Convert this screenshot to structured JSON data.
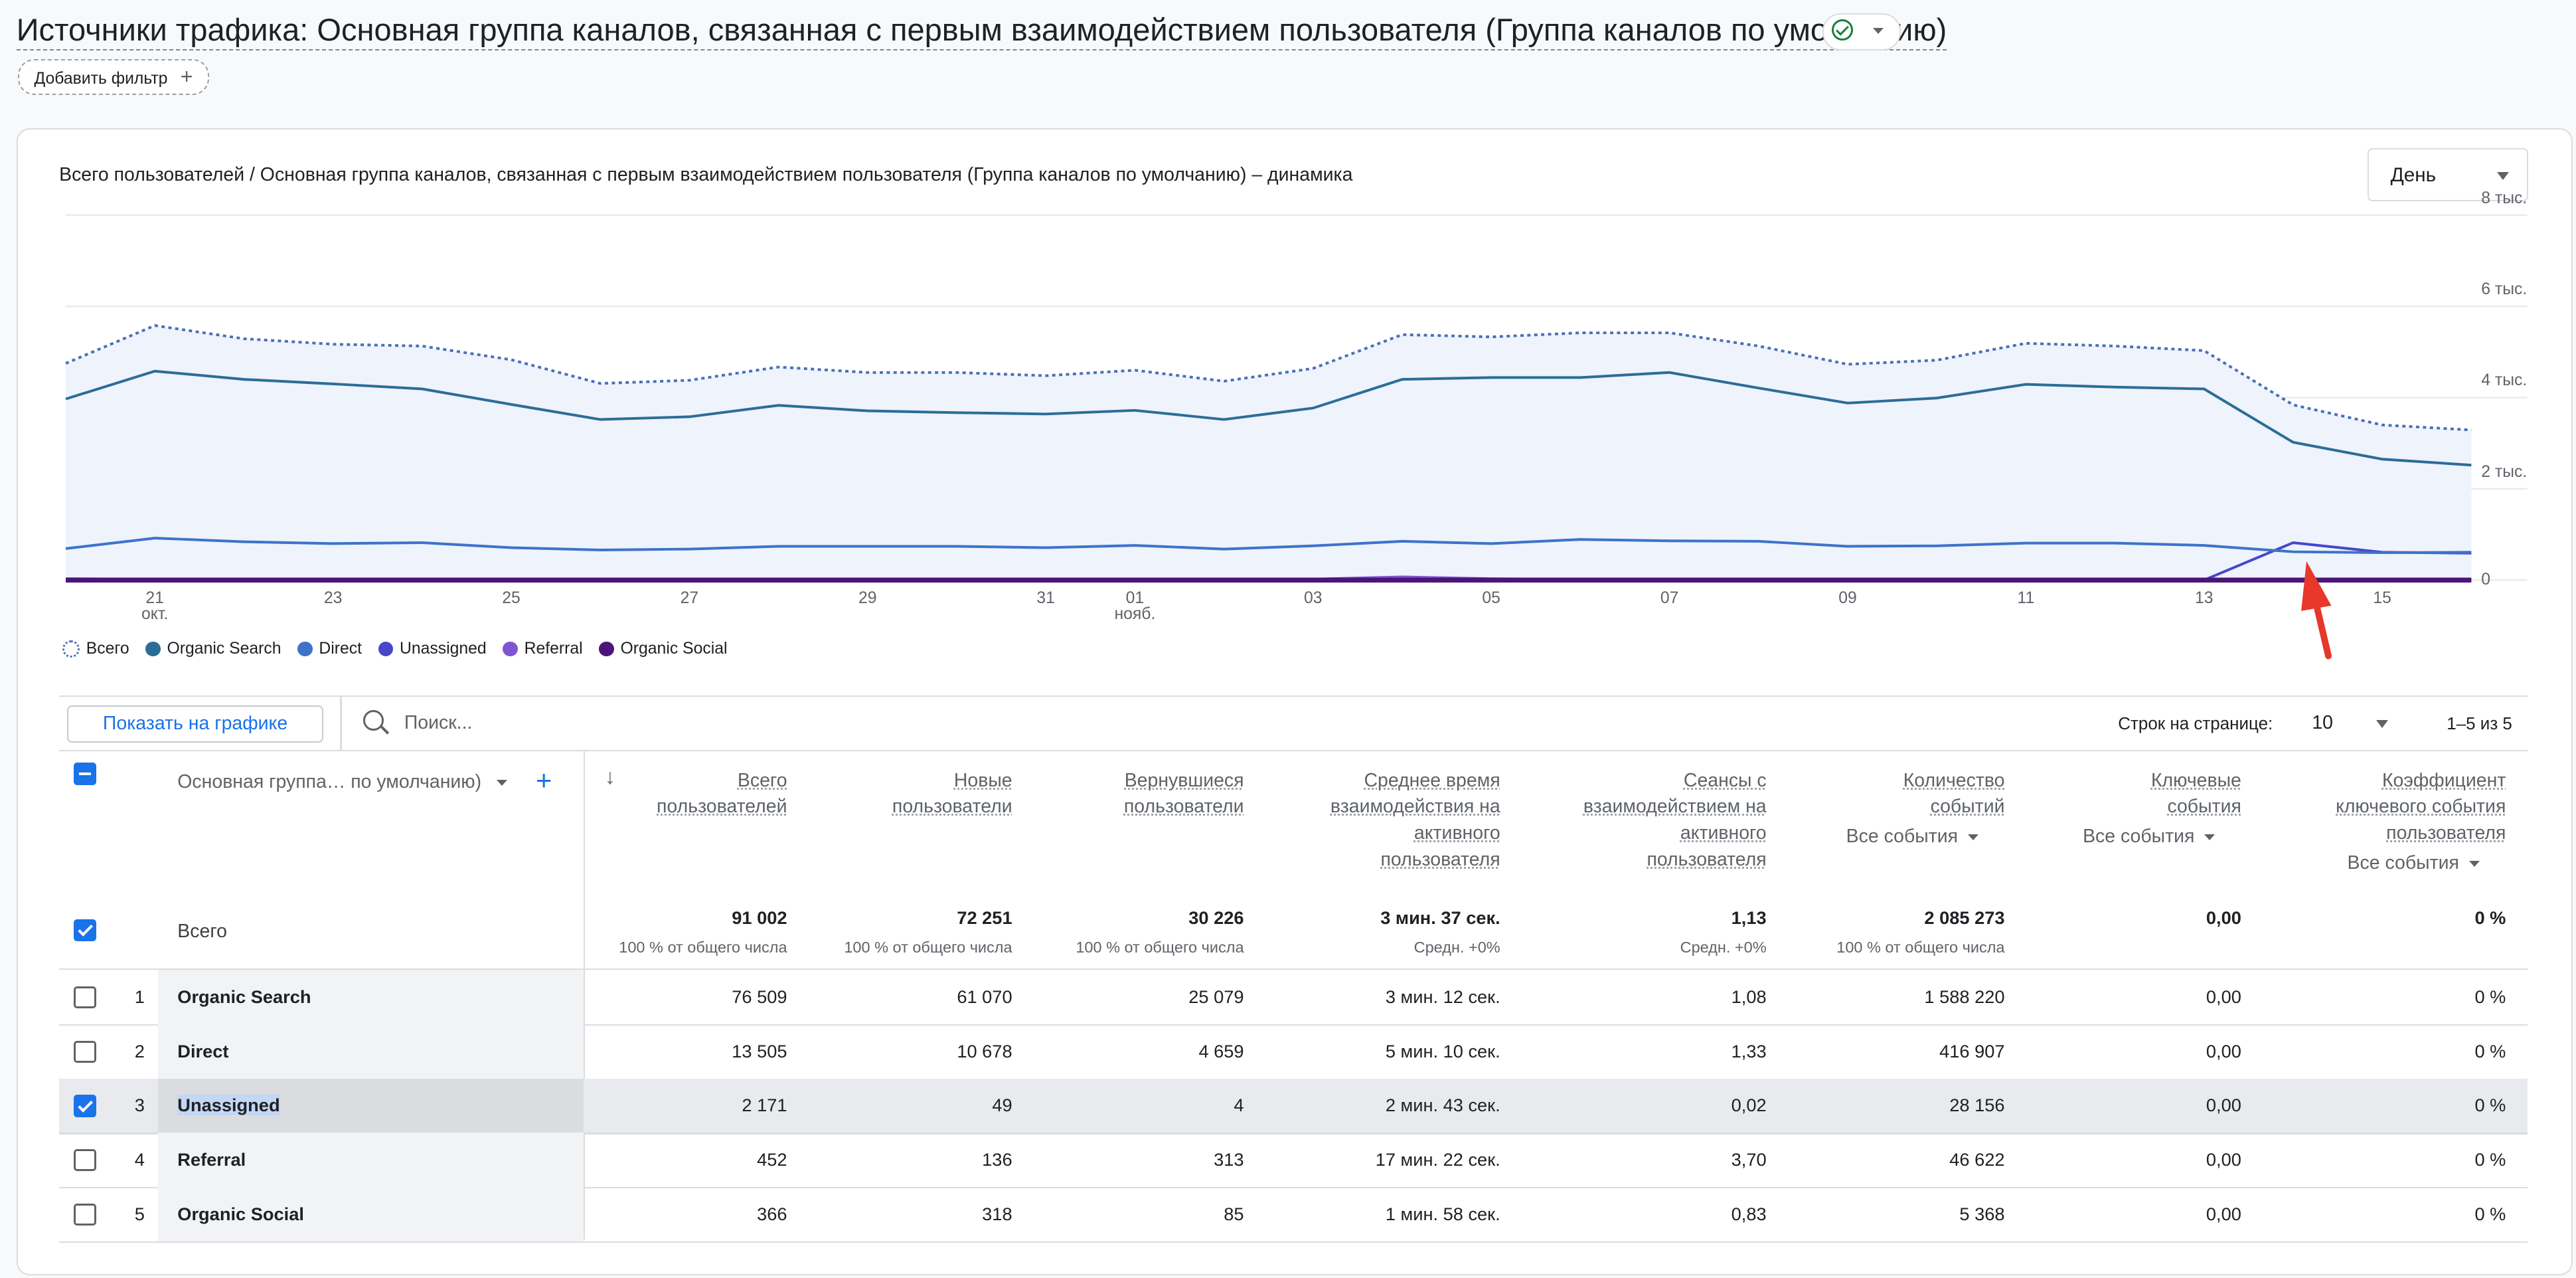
{
  "page": {
    "title": "Источники трафика: Основная группа каналов, связанная с первым взаимодействием пользователя (Группа каналов по умолчанию)",
    "add_filter": "Добавить фильтр",
    "add_filter_icon": "plus-icon"
  },
  "chart_section": {
    "title": "Всего пользователей / Основная группа каналов, связанная с первым взаимодействием пользователя (Группа каналов по умолчанию) – динамика",
    "period": "День"
  },
  "chart_data": {
    "type": "line",
    "x": [
      "20",
      "21",
      "22",
      "23",
      "24",
      "25",
      "26",
      "27",
      "28",
      "29",
      "30",
      "31",
      "01",
      "02",
      "03",
      "04",
      "05",
      "06",
      "07",
      "08",
      "09",
      "10",
      "11",
      "12",
      "13",
      "14",
      "15",
      "16"
    ],
    "x_tick_labels": [
      {
        "label": "21",
        "sub": "окт.",
        "x": "21"
      },
      {
        "label": "23",
        "sub": "",
        "x": "23"
      },
      {
        "label": "25",
        "sub": "",
        "x": "25"
      },
      {
        "label": "27",
        "sub": "",
        "x": "27"
      },
      {
        "label": "29",
        "sub": "",
        "x": "29"
      },
      {
        "label": "31",
        "sub": "",
        "x": "31"
      },
      {
        "label": "01",
        "sub": "нояб.",
        "x": "01"
      },
      {
        "label": "03",
        "sub": "",
        "x": "03"
      },
      {
        "label": "05",
        "sub": "",
        "x": "05"
      },
      {
        "label": "07",
        "sub": "",
        "x": "07"
      },
      {
        "label": "09",
        "sub": "",
        "x": "09"
      },
      {
        "label": "11",
        "sub": "",
        "x": "11"
      },
      {
        "label": "13",
        "sub": "",
        "x": "13"
      },
      {
        "label": "15",
        "sub": "",
        "x": "15"
      }
    ],
    "y_ticks": [
      {
        "value": 0,
        "label": "0"
      },
      {
        "value": 2000,
        "label": "2 тыс."
      },
      {
        "value": 4000,
        "label": "4 тыс."
      },
      {
        "value": 6000,
        "label": "6 тыс."
      },
      {
        "value": 8000,
        "label": "8 тыс."
      }
    ],
    "ylim": [
      0,
      8000
    ],
    "series": [
      {
        "name": "Всего",
        "color": "#4a6fb5",
        "style": "dotted",
        "values": [
          4750,
          5580,
          5290,
          5170,
          5130,
          4830,
          4310,
          4380,
          4670,
          4550,
          4550,
          4480,
          4600,
          4360,
          4640,
          5380,
          5330,
          5420,
          5420,
          5130,
          4730,
          4820,
          5190,
          5130,
          5030,
          3840,
          3400,
          3290
        ]
      },
      {
        "name": "Organic Search",
        "color": "#2c6d96",
        "style": "solid",
        "values": [
          3970,
          4580,
          4400,
          4300,
          4190,
          3850,
          3520,
          3580,
          3830,
          3710,
          3670,
          3640,
          3720,
          3520,
          3770,
          4400,
          4440,
          4440,
          4550,
          4210,
          3880,
          3990,
          4290,
          4230,
          4190,
          3020,
          2650,
          2520
        ]
      },
      {
        "name": "Direct",
        "color": "#3d73c9",
        "style": "solid",
        "values": [
          690,
          920,
          840,
          800,
          820,
          710,
          660,
          680,
          740,
          740,
          740,
          710,
          760,
          680,
          750,
          850,
          800,
          890,
          860,
          850,
          740,
          750,
          810,
          810,
          760,
          620,
          600,
          610
        ]
      },
      {
        "name": "Unassigned",
        "color": "#4647c9",
        "style": "solid",
        "values": [
          0,
          0,
          0,
          0,
          0,
          0,
          0,
          0,
          0,
          0,
          0,
          0,
          0,
          0,
          0,
          0,
          0,
          0,
          0,
          0,
          0,
          0,
          0,
          0,
          0,
          820,
          610,
          590
        ]
      },
      {
        "name": "Referral",
        "color": "#7f56d1",
        "style": "solid",
        "values": [
          30,
          20,
          20,
          20,
          20,
          20,
          20,
          20,
          20,
          20,
          20,
          20,
          20,
          20,
          20,
          70,
          30,
          20,
          20,
          20,
          20,
          20,
          20,
          20,
          20,
          20,
          20,
          20
        ]
      },
      {
        "name": "Organic Social",
        "color": "#4c147a",
        "style": "solid",
        "values": [
          20,
          20,
          20,
          20,
          20,
          20,
          20,
          20,
          20,
          20,
          20,
          20,
          20,
          20,
          20,
          60,
          20,
          20,
          20,
          20,
          20,
          20,
          20,
          20,
          20,
          20,
          20,
          20
        ]
      }
    ]
  },
  "table_toolbar": {
    "show_on_chart": "Показать на графике",
    "search_placeholder": "Поиск...",
    "rows_per_page_label": "Строк на странице:",
    "rows_per_page": "10",
    "pagination": "1–5 из 5"
  },
  "table": {
    "dimension_header": "Основная группа… по умолчанию)",
    "dimension_add_icon": "plus-icon",
    "sort_icon": "arrow-down-icon",
    "columns": [
      {
        "lines": [
          "Всего",
          "пользователей"
        ],
        "selector": ""
      },
      {
        "lines": [
          "Новые",
          "пользователи"
        ],
        "selector": ""
      },
      {
        "lines": [
          "Вернувшиеся",
          "пользователи"
        ],
        "selector": ""
      },
      {
        "lines": [
          "Среднее время",
          "взаимодействия на",
          "активного",
          "пользователя"
        ],
        "selector": ""
      },
      {
        "lines": [
          "Сеансы с",
          "взаимодействием на",
          "активного",
          "пользователя"
        ],
        "selector": ""
      },
      {
        "lines": [
          "Количество",
          "событий"
        ],
        "selector": "Все события"
      },
      {
        "lines": [
          "Ключевые",
          "события"
        ],
        "selector": "Все события"
      },
      {
        "lines": [
          "Коэффициент",
          "ключевого события",
          "пользователя"
        ],
        "selector": "Все события"
      }
    ],
    "totals": {
      "label": "Всего",
      "values": [
        "91 002",
        "72 251",
        "30 226",
        "3 мин. 37 сек.",
        "1,13",
        "2 085 273",
        "0,00",
        "0 %"
      ],
      "subs": [
        "100 % от общего числа",
        "100 % от общего числа",
        "100 % от общего числа",
        "Средн. +0%",
        "Средн. +0%",
        "100 % от общего числа",
        "",
        ""
      ]
    },
    "rows": [
      {
        "num": "1",
        "name": "Organic Search",
        "checked": false,
        "values": [
          "76 509",
          "61 070",
          "25 079",
          "3 мин. 12 сек.",
          "1,08",
          "1 588 220",
          "0,00",
          "0 %"
        ]
      },
      {
        "num": "2",
        "name": "Direct",
        "checked": false,
        "values": [
          "13 505",
          "10 678",
          "4 659",
          "5 мин. 10 сек.",
          "1,33",
          "416 907",
          "0,00",
          "0 %"
        ]
      },
      {
        "num": "3",
        "name": "Unassigned",
        "checked": true,
        "values": [
          "2 171",
          "49",
          "4",
          "2 мин. 43 сек.",
          "0,02",
          "28 156",
          "0,00",
          "0 %"
        ]
      },
      {
        "num": "4",
        "name": "Referral",
        "checked": false,
        "values": [
          "452",
          "136",
          "313",
          "17 мин. 22 сек.",
          "3,70",
          "46 622",
          "0,00",
          "0 %"
        ]
      },
      {
        "num": "5",
        "name": "Organic Social",
        "checked": false,
        "values": [
          "366",
          "318",
          "85",
          "1 мин. 58 сек.",
          "0,83",
          "5 368",
          "0,00",
          "0 %"
        ]
      }
    ]
  },
  "annotations": {
    "arrow_color": "#e8372b"
  }
}
